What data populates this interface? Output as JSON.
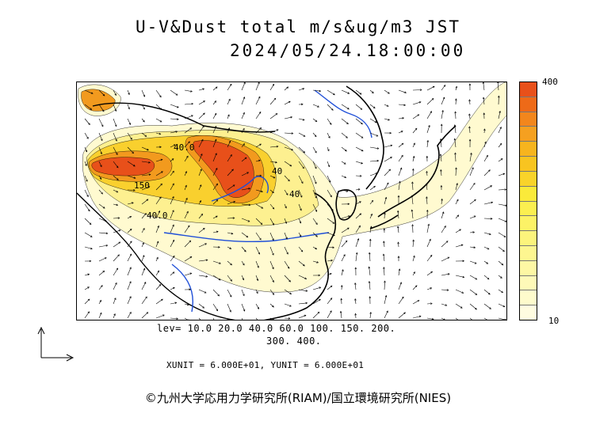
{
  "title": {
    "line1": "U-V&Dust total m/s&ug/m3 JST",
    "line2": "2024/05/24.18:00:00"
  },
  "colorbar": {
    "max_label": "400",
    "min_label": "10",
    "colors": [
      "#e8501a",
      "#ee6a18",
      "#f2861c",
      "#f5a020",
      "#f7b41e",
      "#f8c420",
      "#f9d32a",
      "#faea3a",
      "#fbef50",
      "#fcf266",
      "#fcf47c",
      "#fdf690",
      "#fdf7a4",
      "#fef9b8",
      "#fefbcc",
      "#fffce0"
    ]
  },
  "contour_levels": {
    "line1": "lev= 10.0 20.0 40.0 60.0 100. 150. 200.",
    "line2": "300. 400.",
    "values": [
      10,
      20,
      40,
      60,
      100,
      150,
      200,
      300,
      400
    ]
  },
  "units": {
    "text": "XUNIT = 6.000E+01, YUNIT = 6.000E+01",
    "xunit": 60,
    "yunit": 60
  },
  "map": {
    "contour_labels": [
      "40.0",
      "150",
      "40.0",
      "40",
      "40"
    ],
    "region_colors": {
      "level_10": "#fffad0",
      "level_40": "#fdf090",
      "level_100": "#f9d02e",
      "level_200": "#f29a1e",
      "level_400": "#e8501a",
      "coastline": "#000000",
      "river": "#1f4fd8",
      "wind_vector": "#000000"
    },
    "wind_field": "vector arrows over the domain"
  },
  "copyright": "©九州大学応用力学研究所(RIAM)/国立環境研究所(NIES)"
}
